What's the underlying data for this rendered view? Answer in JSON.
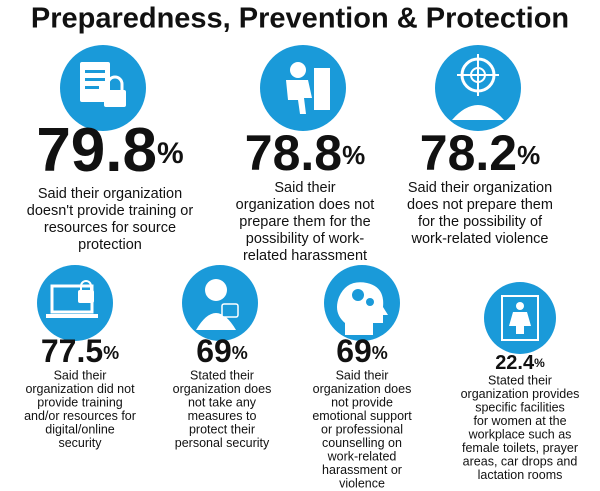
{
  "header": {
    "title": "Preparedness, Prevention & Protection"
  },
  "items": [
    {
      "value": 79.8,
      "unit": "%",
      "lines": [
        "Said their organization",
        "doesn't provide training or",
        "resources for source",
        "protection"
      ]
    },
    {
      "value": 78.8,
      "unit": "%",
      "lines": [
        "Said their",
        "organization does not",
        "prepare them for the",
        "possibility of work-",
        "related harassment"
      ]
    },
    {
      "value": 78.2,
      "unit": "%",
      "lines": [
        "Said their organization",
        "does not prepare them",
        "for the possibility of",
        "work-related violence"
      ]
    },
    {
      "value": 77.5,
      "unit": "%",
      "lines": [
        "Said their",
        "organization did not",
        "provide training",
        "and/or resources for",
        "digital/online",
        "security"
      ]
    },
    {
      "value": 69,
      "unit": "%",
      "lines": [
        "Stated their",
        "organization does",
        "not take any",
        "measures to",
        "protect their",
        "personal security"
      ]
    },
    {
      "value": 69,
      "unit": "%",
      "lines": [
        "Said their",
        "organization does",
        "not provide",
        "emotional support",
        "or professional",
        "counselling on",
        "work-related",
        "harassment or",
        "violence"
      ]
    },
    {
      "value": 22.4,
      "unit": "%",
      "lines": [
        "Stated their",
        "organization provides",
        "specific facilities",
        "for women at the",
        "workplace such as",
        "female toilets, prayer",
        "areas, car drops and",
        "lactation rooms"
      ]
    }
  ]
}
